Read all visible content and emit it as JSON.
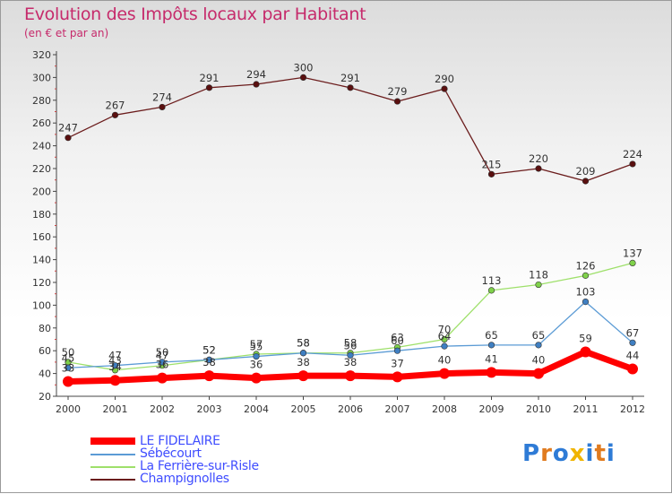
{
  "header": {
    "title": "Evolution des Impôts locaux par Habitant",
    "subtitle": "(en € et par an)"
  },
  "legend": {
    "items": [
      {
        "label": "LE FIDELAIRE",
        "color": "#ff0000"
      },
      {
        "label": "Sébécourt",
        "color": "#5b9bd5"
      },
      {
        "label": "La Ferrière-sur-Risle",
        "color": "#9ee06a"
      },
      {
        "label": "Champignolles",
        "color": "#6b1c1c"
      }
    ]
  },
  "logo": {
    "letters": [
      "P",
      "r",
      "o",
      "x",
      "i",
      "t",
      "i"
    ],
    "colors": [
      "#2e7bd6",
      "#e07b1f",
      "#2e7bd6",
      "#f0b400",
      "#2e7bd6",
      "#e07b1f",
      "#2e7bd6"
    ]
  },
  "chart_data": {
    "type": "line",
    "title": "Evolution des Impôts locaux par Habitant",
    "subtitle": "(en € et par an)",
    "xlabel": "",
    "ylabel": "",
    "x": [
      "2000",
      "2001",
      "2002",
      "2003",
      "2004",
      "2005",
      "2006",
      "2007",
      "2008",
      "2009",
      "2010",
      "2011",
      "2012"
    ],
    "ylim": [
      20,
      320
    ],
    "yticks": [
      20,
      40,
      60,
      80,
      100,
      120,
      140,
      160,
      180,
      200,
      220,
      240,
      260,
      280,
      300,
      320
    ],
    "grid": false,
    "series": [
      {
        "name": "Champignolles",
        "color": "#6b1c1c",
        "marker": "#5a0f0f",
        "values": [
          247,
          267,
          274,
          291,
          294,
          300,
          291,
          279,
          290,
          215,
          220,
          209,
          224
        ]
      },
      {
        "name": "La Ferrière-sur-Risle",
        "color": "#9ee06a",
        "marker": "#7fd14a",
        "values": [
          50,
          43,
          47,
          52,
          57,
          58,
          58,
          63,
          70,
          113,
          118,
          126,
          137
        ]
      },
      {
        "name": "Sébécourt",
        "color": "#5b9bd5",
        "marker": "#3f7fc2",
        "values": [
          45,
          47,
          50,
          52,
          55,
          58,
          56,
          60,
          64,
          65,
          65,
          103,
          67
        ]
      },
      {
        "name": "LE FIDELAIRE",
        "color": "#ff0000",
        "marker": "#ff0000",
        "values": [
          33,
          34,
          36,
          38,
          36,
          38,
          38,
          37,
          40,
          41,
          40,
          59,
          44
        ]
      }
    ]
  }
}
